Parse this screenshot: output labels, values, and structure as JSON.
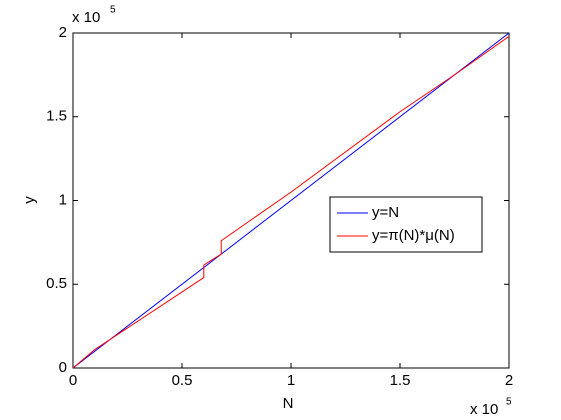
{
  "chart_data": {
    "type": "line",
    "xlabel": "N",
    "ylabel": "y",
    "x_exponent_base": "x 10",
    "x_exponent": "5",
    "y_exponent_base": "x 10",
    "y_exponent": "5",
    "xlim": [
      0,
      2
    ],
    "ylim": [
      0,
      2
    ],
    "xticks": [
      0,
      0.5,
      1,
      1.5,
      2
    ],
    "yticks": [
      0,
      0.5,
      1,
      1.5,
      2
    ],
    "grid": false,
    "legend": "east",
    "series": [
      {
        "name": "y=N",
        "color": "#0000ff",
        "x": [
          0,
          2
        ],
        "values": [
          0,
          2
        ]
      },
      {
        "name": "y=π(N)*μ(N)",
        "color": "#ff0000",
        "x": [
          0,
          0.1,
          0.6,
          0.6,
          0.68,
          0.68,
          1.0,
          1.5,
          1.75,
          2.0
        ],
        "values": [
          0,
          0.11,
          0.54,
          0.615,
          0.68,
          0.76,
          1.05,
          1.53,
          1.75,
          1.98
        ]
      }
    ]
  }
}
